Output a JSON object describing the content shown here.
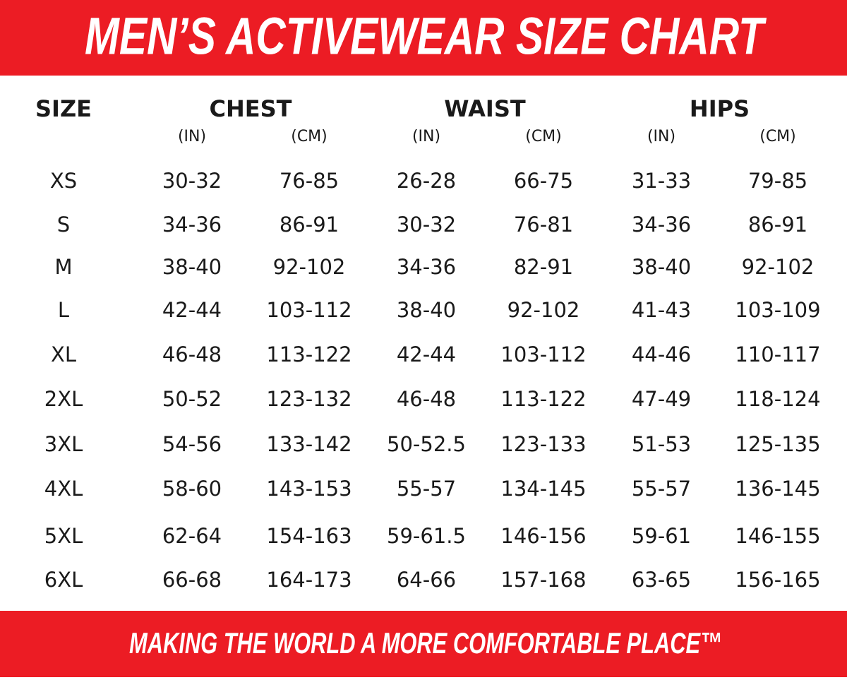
{
  "header": {
    "title": "MEN’S ACTIVEWEAR SIZE CHART"
  },
  "table": {
    "size_header": "SIZE",
    "groups": [
      {
        "name": "CHEST",
        "units": [
          "(IN)",
          "(CM)"
        ]
      },
      {
        "name": "WAIST",
        "units": [
          "(IN)",
          "(CM)"
        ]
      },
      {
        "name": "HIPS",
        "units": [
          "(IN)",
          "(CM)"
        ]
      }
    ],
    "rows": [
      [
        "XS",
        "30-32",
        "76-85",
        "26-28",
        "66-75",
        "31-33",
        "79-85"
      ],
      [
        "S",
        "34-36",
        "86-91",
        "30-32",
        "76-81",
        "34-36",
        "86-91"
      ],
      [
        "M",
        "38-40",
        "92-102",
        "34-36",
        "82-91",
        "38-40",
        "92-102"
      ],
      [
        "L",
        "42-44",
        "103-112",
        "38-40",
        "92-102",
        "41-43",
        "103-109"
      ],
      [
        "XL",
        "46-48",
        "113-122",
        "42-44",
        "103-112",
        "44-46",
        "110-117"
      ],
      [
        "2XL",
        "50-52",
        "123-132",
        "46-48",
        "113-122",
        "47-49",
        "118-124"
      ],
      [
        "3XL",
        "54-56",
        "133-142",
        "50-52.5",
        "123-133",
        "51-53",
        "125-135"
      ],
      [
        "4XL",
        "58-60",
        "143-153",
        "55-57",
        "134-145",
        "55-57",
        "136-145"
      ],
      [
        "5XL",
        "62-64",
        "154-163",
        "59-61.5",
        "146-156",
        "59-61",
        "146-155"
      ],
      [
        "6XL",
        "66-68",
        "164-173",
        "64-66",
        "157-168",
        "63-65",
        "156-165"
      ]
    ]
  },
  "footer": {
    "tagline": "MAKING THE WORLD A MORE COMFORTABLE PLACE™"
  }
}
